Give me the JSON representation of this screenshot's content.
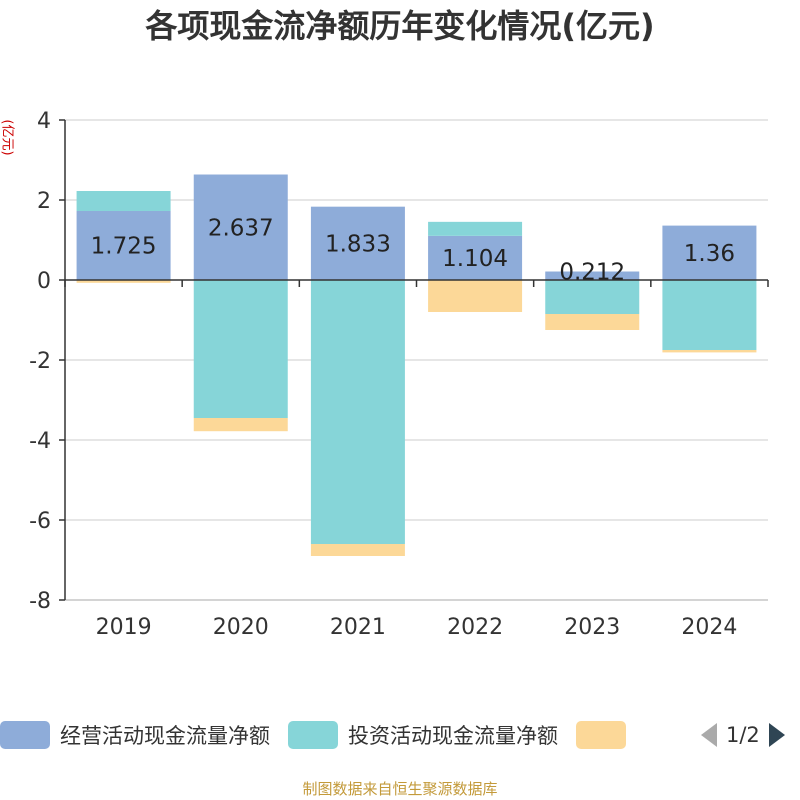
{
  "chart_data": {
    "type": "bar",
    "stacked": true,
    "title": "各项现金流净额历年变化情况(亿元)",
    "ylabel": "(亿元)",
    "categories": [
      "2019",
      "2020",
      "2021",
      "2022",
      "2023",
      "2024"
    ],
    "ylim": [
      -8,
      4
    ],
    "yticks": [
      4,
      2,
      0,
      -2,
      -4,
      -6,
      -8
    ],
    "grid": true,
    "series": [
      {
        "name": "经营活动现金流量净额",
        "color": "#8eacd9",
        "values": [
          1.725,
          2.637,
          1.833,
          1.104,
          0.212,
          1.36
        ]
      },
      {
        "name": "投资活动现金流量净额",
        "color": "#86d5d8",
        "values": [
          0.5,
          -3.45,
          -6.6,
          0.35,
          -0.85,
          -1.75
        ]
      },
      {
        "name": "",
        "color": "#fcd898",
        "values": [
          -0.07,
          -0.33,
          -0.3,
          -0.8,
          -0.4,
          -0.06
        ]
      }
    ],
    "data_labels": [
      "1.725",
      "2.637",
      "1.833",
      "1.104",
      "0.212",
      "1.36"
    ]
  },
  "legend": {
    "items": [
      {
        "label": "经营活动现金流量净额",
        "color": "#8eacd9"
      },
      {
        "label": "投资活动现金流量净额",
        "color": "#86d5d8"
      },
      {
        "label": "",
        "color": "#fcd898"
      }
    ],
    "page_indicator": "1/2"
  },
  "source_note": "制图数据来自恒生聚源数据库"
}
